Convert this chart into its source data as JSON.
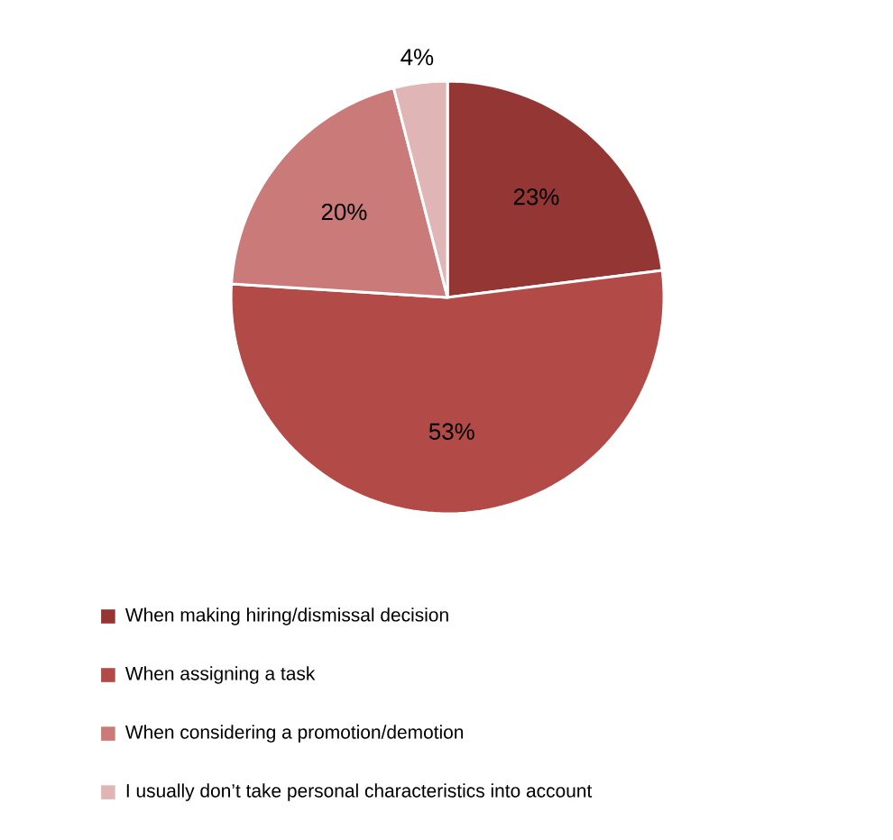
{
  "chart_data": {
    "type": "pie",
    "categories": [
      "When making hiring/dismissal decision",
      "When assigning a task",
      "When considering a promotion/demotion",
      "I usually don’t take personal characteristics into account"
    ],
    "values": [
      23,
      53,
      20,
      4
    ],
    "value_labels": [
      "23%",
      "53%",
      "20%",
      "4%"
    ],
    "colors": [
      "#943634",
      "#b24a47",
      "#c97a79",
      "#e0b5b5"
    ],
    "legend": "bottom"
  }
}
